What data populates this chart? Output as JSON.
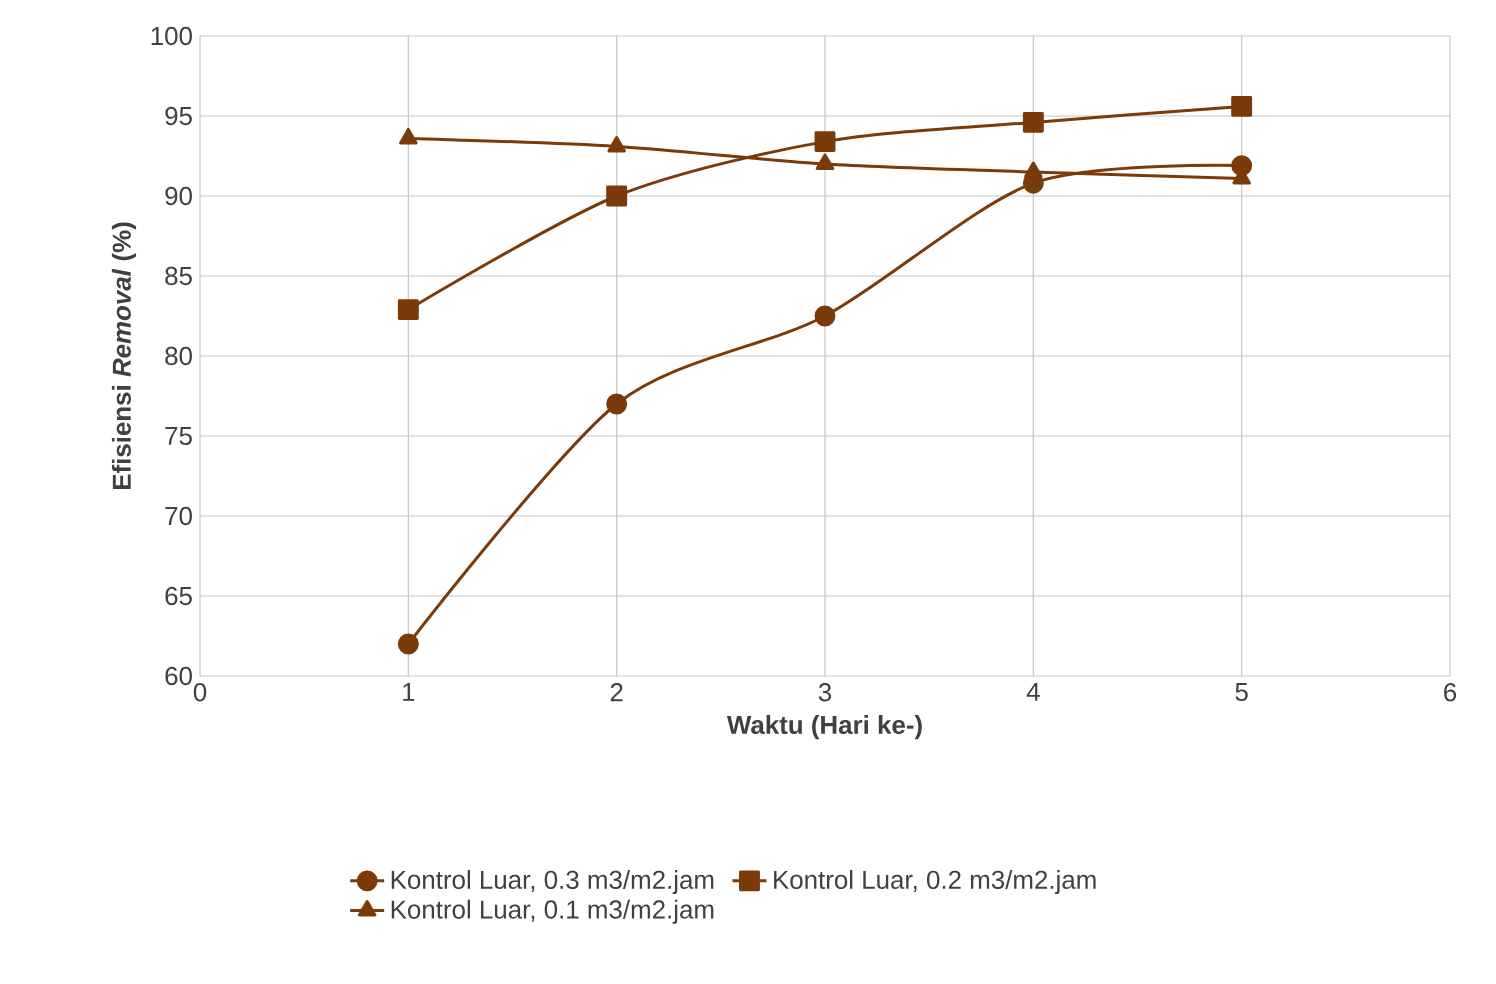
{
  "chart_data": {
    "type": "line",
    "xlabel": "Waktu (Hari ke-)",
    "ylabel": "Efisiensi *Removal* (%)",
    "xlim": [
      0,
      6
    ],
    "xticks": [
      0,
      1,
      2,
      3,
      4,
      5,
      6
    ],
    "ylim": [
      60,
      100
    ],
    "yticks": [
      60,
      65,
      70,
      75,
      80,
      85,
      90,
      95,
      100
    ],
    "grid": true,
    "legend": "bottom",
    "line_style": "solid",
    "x": [
      1,
      2,
      3,
      4,
      5
    ],
    "series": [
      {
        "name": "Kontrol Luar, 0.3 m3/m2.jam",
        "color": "#7b3a0a",
        "marker": "circle",
        "values": [
          62,
          77,
          82.5,
          90.8,
          91.9
        ]
      },
      {
        "name": "Kontrol Luar, 0.2 m3/m2.jam",
        "color": "#7b3a0a",
        "marker": "square",
        "values": [
          82.9,
          90,
          93.4,
          94.6,
          95.6
        ]
      },
      {
        "name": "Kontrol Luar, 0.1 m3/m2.jam",
        "color": "#7b3a0a",
        "marker": "triangle",
        "values": [
          93.6,
          93.1,
          92,
          91.5,
          91.1
        ]
      }
    ]
  }
}
